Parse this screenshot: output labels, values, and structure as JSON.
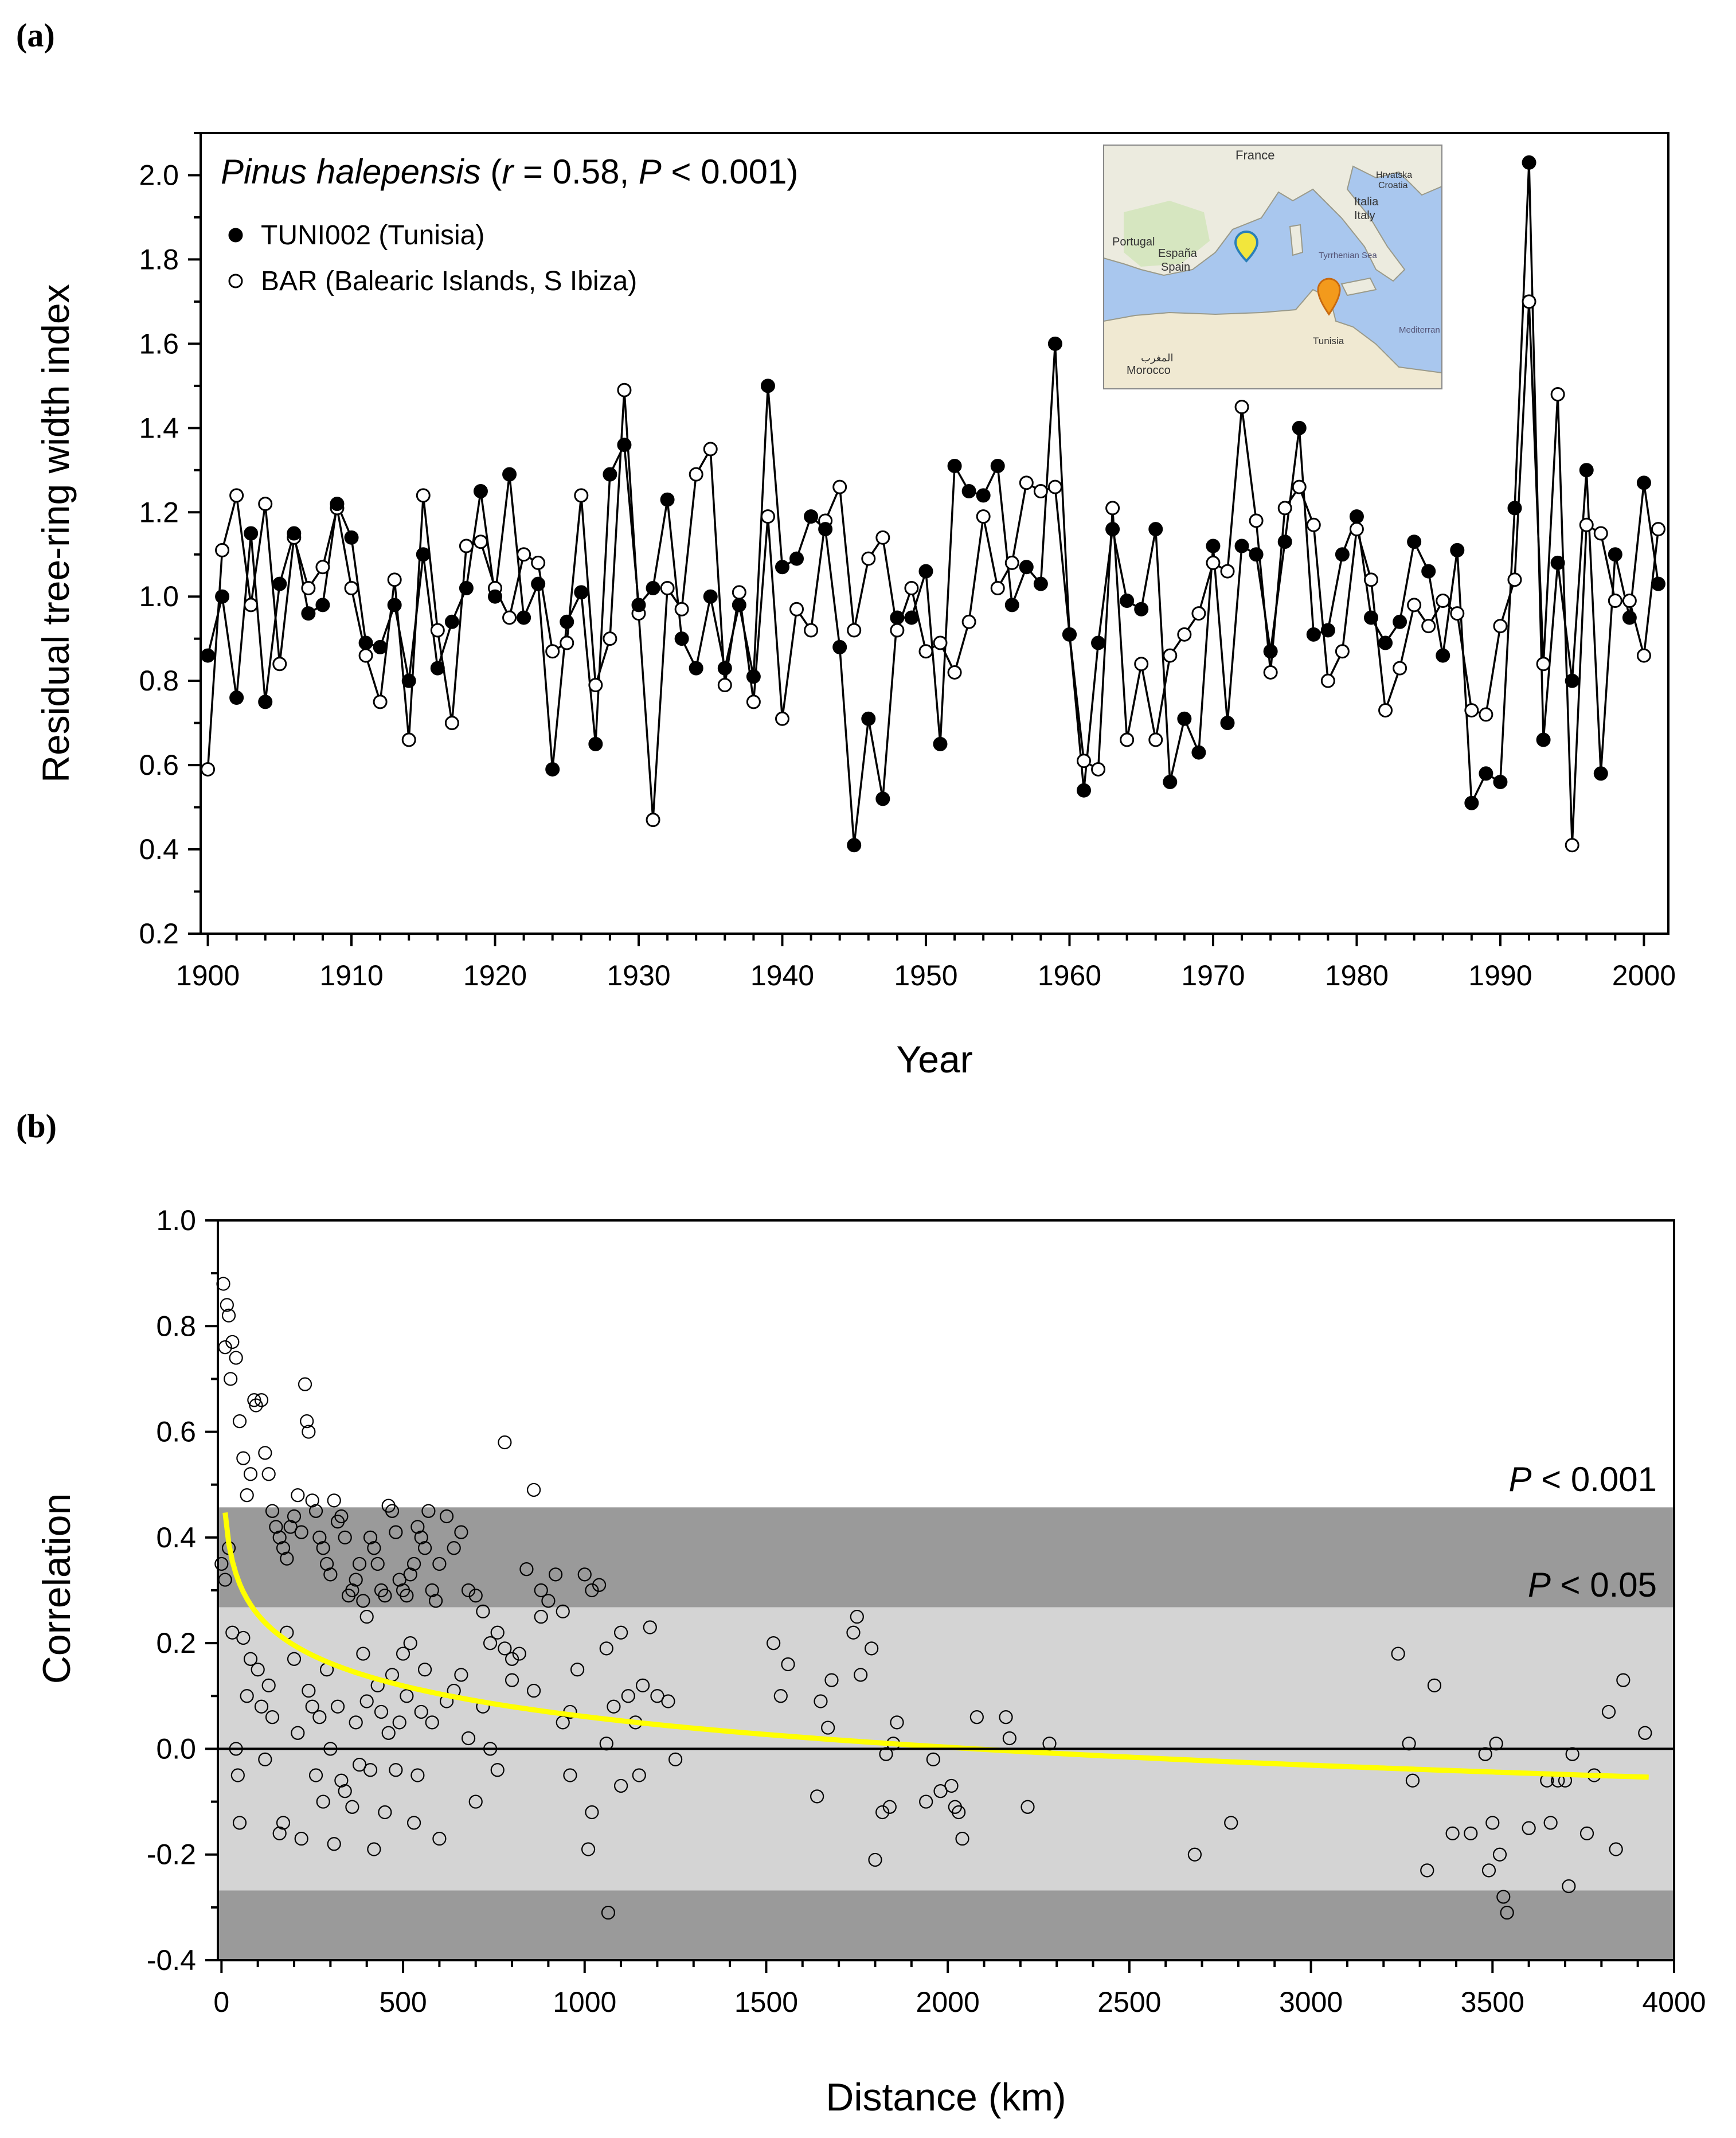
{
  "panel_a_label": "(a)",
  "panel_b_label": "(b)",
  "chart_data": [
    {
      "type": "line",
      "title_species": "Pinus halepensis",
      "title_stats_r_label": "r",
      "title_stats_r_value": " = 0.58, ",
      "title_stats_p_label": "P",
      "title_stats_p_value": " < 0.001)",
      "title_open_paren": " (",
      "xlabel": "Year",
      "ylabel": "Residual tree-ring width index",
      "xlim": [
        1899.5,
        2001.7
      ],
      "ylim": [
        0.2,
        2.1
      ],
      "xticks": [
        1900,
        1910,
        1920,
        1930,
        1940,
        1950,
        1960,
        1970,
        1980,
        1990,
        2000
      ],
      "yticks": [
        0.2,
        0.4,
        0.6,
        0.8,
        1.0,
        1.2,
        1.4,
        1.6,
        1.8,
        2.0
      ],
      "ytick_labels": [
        "0.2",
        "0.4",
        "0.6",
        "0.8",
        "1.0",
        "1.2",
        "1.4",
        "1.6",
        "1.8",
        "2.0"
      ],
      "legend_position": "top-left",
      "inset_map": {
        "labels": [
          "France",
          "Hrvatska",
          "Croatia",
          "Italia",
          "Italy",
          "Portugal",
          "España",
          "Spain",
          "Tyrrhenian Sea",
          "Mediterran",
          "المغرب",
          "Morocco",
          "Tunisia"
        ],
        "marker_colors": {
          "bar": "#f2e63c",
          "tuni": "#f39a1c"
        }
      },
      "series": [
        {
          "name": "TUNI002 (Tunisia)",
          "marker": "filled",
          "start_year": 1900,
          "values": [
            0.86,
            1.0,
            0.76,
            1.15,
            0.75,
            1.03,
            1.15,
            0.96,
            0.98,
            1.22,
            1.14,
            0.89,
            0.88,
            0.98,
            0.8,
            1.1,
            0.83,
            0.94,
            1.02,
            1.25,
            1.0,
            1.29,
            0.95,
            1.03,
            0.59,
            0.94,
            1.01,
            0.65,
            1.29,
            1.36,
            0.98,
            1.02,
            1.23,
            0.9,
            0.83,
            1.0,
            0.83,
            0.98,
            0.81,
            1.5,
            1.07,
            1.09,
            1.19,
            1.16,
            0.88,
            0.41,
            0.71,
            0.52,
            0.95,
            0.95,
            1.06,
            0.65,
            1.31,
            1.25,
            1.24,
            1.31,
            0.98,
            1.07,
            1.03,
            1.6,
            0.91,
            0.54,
            0.89,
            1.16,
            0.99,
            0.97,
            1.16,
            0.56,
            0.71,
            0.63,
            1.12,
            0.7,
            1.12,
            1.1,
            0.87,
            1.13,
            1.4,
            0.91,
            0.92,
            1.1,
            1.19,
            0.95,
            0.89,
            0.94,
            1.13,
            1.06,
            0.86,
            1.11,
            0.51,
            0.58,
            0.56,
            1.21,
            2.03,
            0.66,
            1.08,
            0.8,
            1.3,
            0.58,
            1.1,
            0.95,
            1.27,
            1.03
          ]
        },
        {
          "name": "BAR (Balearic Islands, S Ibiza)",
          "marker": "open",
          "start_year": 1900,
          "values": [
            0.59,
            1.11,
            1.24,
            0.98,
            1.22,
            0.84,
            1.14,
            1.02,
            1.07,
            1.21,
            1.02,
            0.86,
            0.75,
            1.04,
            0.66,
            1.24,
            0.92,
            0.7,
            1.12,
            1.13,
            1.02,
            0.95,
            1.1,
            1.08,
            0.87,
            0.89,
            1.24,
            0.79,
            0.9,
            1.49,
            0.96,
            0.47,
            1.02,
            0.97,
            1.29,
            1.35,
            0.79,
            1.01,
            0.75,
            1.19,
            0.71,
            0.97,
            0.92,
            1.18,
            1.26,
            0.92,
            1.09,
            1.14,
            0.92,
            1.02,
            0.87,
            0.89,
            0.82,
            0.94,
            1.19,
            1.02,
            1.08,
            1.27,
            1.25,
            1.26,
            0.91,
            0.61,
            0.59,
            1.21,
            0.66,
            0.84,
            0.66,
            0.86,
            0.91,
            0.96,
            1.08,
            1.06,
            1.45,
            1.18,
            0.82,
            1.21,
            1.26,
            1.17,
            0.8,
            0.87,
            1.16,
            1.04,
            0.73,
            0.83,
            0.98,
            0.93,
            0.99,
            0.96,
            0.73,
            0.72,
            0.93,
            1.04,
            1.7,
            0.84,
            1.48,
            0.41,
            1.17,
            1.15,
            0.99,
            0.99,
            0.86,
            1.16
          ]
        }
      ]
    },
    {
      "type": "scatter",
      "xlabel": "Distance (km)",
      "ylabel": "Correlation",
      "xlim": [
        -10,
        4000
      ],
      "ylim": [
        -0.4,
        1.0
      ],
      "xticks": [
        0,
        500,
        1000,
        1500,
        2000,
        2500,
        3000,
        3500,
        4000
      ],
      "yticks": [
        -0.4,
        -0.2,
        0.0,
        0.2,
        0.4,
        0.6,
        0.8,
        1.0
      ],
      "ytick_labels": [
        "-0.4",
        "-0.2",
        "0.0",
        "0.2",
        "0.4",
        "0.6",
        "0.8",
        "1.0"
      ],
      "significance_bands": [
        {
          "label_italic": "P",
          "label_rest": " < 0.001",
          "threshold": 0.457,
          "color": "#9a9a9a"
        },
        {
          "label_italic": "P",
          "label_rest": " < 0.05",
          "threshold": 0.268,
          "color": "#d4d4d4"
        }
      ],
      "fit_curve": {
        "color": "#ffff00",
        "model": "logarithmic",
        "a": 0.64,
        "b": -0.0838,
        "x_range": [
          10,
          3930
        ]
      },
      "points": [
        [
          5,
          0.88
        ],
        [
          10,
          0.76
        ],
        [
          15,
          0.84
        ],
        [
          20,
          0.82
        ],
        [
          25,
          0.7
        ],
        [
          30,
          0.77
        ],
        [
          40,
          0.74
        ],
        [
          50,
          0.62
        ],
        [
          60,
          0.55
        ],
        [
          70,
          0.48
        ],
        [
          80,
          0.52
        ],
        [
          90,
          0.66
        ],
        [
          95,
          0.65
        ],
        [
          110,
          0.66
        ],
        [
          120,
          0.56
        ],
        [
          130,
          0.52
        ],
        [
          140,
          0.45
        ],
        [
          150,
          0.42
        ],
        [
          160,
          0.4
        ],
        [
          170,
          0.38
        ],
        [
          180,
          0.36
        ],
        [
          190,
          0.42
        ],
        [
          200,
          0.44
        ],
        [
          210,
          0.48
        ],
        [
          220,
          0.41
        ],
        [
          230,
          0.69
        ],
        [
          235,
          0.62
        ],
        [
          240,
          0.6
        ],
        [
          250,
          0.47
        ],
        [
          260,
          0.45
        ],
        [
          270,
          0.4
        ],
        [
          280,
          0.38
        ],
        [
          290,
          0.35
        ],
        [
          300,
          0.33
        ],
        [
          310,
          0.47
        ],
        [
          320,
          0.43
        ],
        [
          330,
          0.44
        ],
        [
          340,
          0.4
        ],
        [
          350,
          0.29
        ],
        [
          360,
          0.3
        ],
        [
          370,
          0.32
        ],
        [
          380,
          0.35
        ],
        [
          390,
          0.28
        ],
        [
          400,
          0.25
        ],
        [
          410,
          0.4
        ],
        [
          420,
          0.38
        ],
        [
          430,
          0.35
        ],
        [
          440,
          0.3
        ],
        [
          450,
          0.29
        ],
        [
          460,
          0.46
        ],
        [
          470,
          0.45
        ],
        [
          480,
          0.41
        ],
        [
          490,
          0.32
        ],
        [
          500,
          0.3
        ],
        [
          510,
          0.29
        ],
        [
          520,
          0.33
        ],
        [
          530,
          0.35
        ],
        [
          540,
          0.42
        ],
        [
          550,
          0.4
        ],
        [
          560,
          0.38
        ],
        [
          570,
          0.45
        ],
        [
          580,
          0.3
        ],
        [
          590,
          0.28
        ],
        [
          600,
          0.35
        ],
        [
          620,
          0.44
        ],
        [
          640,
          0.38
        ],
        [
          660,
          0.41
        ],
        [
          680,
          0.3
        ],
        [
          700,
          0.29
        ],
        [
          720,
          0.26
        ],
        [
          740,
          0.2
        ],
        [
          760,
          0.22
        ],
        [
          780,
          0.58
        ],
        [
          800,
          0.13
        ],
        [
          820,
          0.18
        ],
        [
          840,
          0.34
        ],
        [
          860,
          0.49
        ],
        [
          880,
          0.3
        ],
        [
          900,
          0.28
        ],
        [
          920,
          0.33
        ],
        [
          940,
          0.26
        ],
        [
          960,
          0.07
        ],
        [
          980,
          0.15
        ],
        [
          1000,
          0.33
        ],
        [
          1020,
          0.3
        ],
        [
          1040,
          0.31
        ],
        [
          1060,
          0.19
        ],
        [
          1080,
          0.08
        ],
        [
          1100,
          0.22
        ],
        [
          1120,
          0.1
        ],
        [
          1140,
          0.05
        ],
        [
          1160,
          0.12
        ],
        [
          1180,
          0.23
        ],
        [
          1200,
          0.1
        ],
        [
          1230,
          0.09
        ],
        [
          1250,
          -0.02
        ],
        [
          1010,
          -0.19
        ],
        [
          1020,
          -0.12
        ],
        [
          1065,
          -0.31
        ],
        [
          1060,
          0.01
        ],
        [
          1100,
          -0.07
        ],
        [
          1150,
          -0.05
        ],
        [
          0,
          0.35
        ],
        [
          10,
          0.32
        ],
        [
          20,
          0.38
        ],
        [
          30,
          0.22
        ],
        [
          40,
          0.0
        ],
        [
          45,
          -0.05
        ],
        [
          50,
          -0.14
        ],
        [
          60,
          0.21
        ],
        [
          70,
          0.1
        ],
        [
          80,
          0.17
        ],
        [
          100,
          0.15
        ],
        [
          110,
          0.08
        ],
        [
          120,
          -0.02
        ],
        [
          130,
          0.12
        ],
        [
          140,
          0.06
        ],
        [
          160,
          -0.16
        ],
        [
          170,
          -0.14
        ],
        [
          180,
          0.22
        ],
        [
          200,
          0.17
        ],
        [
          210,
          0.03
        ],
        [
          220,
          -0.17
        ],
        [
          240,
          0.11
        ],
        [
          250,
          0.08
        ],
        [
          260,
          -0.05
        ],
        [
          270,
          0.06
        ],
        [
          280,
          -0.1
        ],
        [
          290,
          0.15
        ],
        [
          300,
          0.0
        ],
        [
          310,
          -0.18
        ],
        [
          320,
          0.08
        ],
        [
          330,
          -0.06
        ],
        [
          340,
          -0.08
        ],
        [
          360,
          -0.11
        ],
        [
          370,
          0.05
        ],
        [
          380,
          -0.03
        ],
        [
          390,
          0.18
        ],
        [
          400,
          0.09
        ],
        [
          410,
          -0.04
        ],
        [
          420,
          -0.19
        ],
        [
          430,
          0.12
        ],
        [
          440,
          0.07
        ],
        [
          450,
          -0.12
        ],
        [
          460,
          0.03
        ],
        [
          470,
          0.14
        ],
        [
          480,
          -0.04
        ],
        [
          490,
          0.05
        ],
        [
          500,
          0.18
        ],
        [
          510,
          0.1
        ],
        [
          520,
          0.2
        ],
        [
          530,
          -0.14
        ],
        [
          540,
          -0.05
        ],
        [
          550,
          0.07
        ],
        [
          560,
          0.15
        ],
        [
          580,
          0.05
        ],
        [
          600,
          -0.17
        ],
        [
          620,
          0.09
        ],
        [
          640,
          0.11
        ],
        [
          660,
          0.14
        ],
        [
          680,
          0.02
        ],
        [
          700,
          -0.1
        ],
        [
          720,
          0.08
        ],
        [
          740,
          0.0
        ],
        [
          760,
          -0.04
        ],
        [
          780,
          0.19
        ],
        [
          800,
          0.17
        ],
        [
          860,
          0.11
        ],
        [
          880,
          0.25
        ],
        [
          940,
          0.05
        ],
        [
          960,
          -0.05
        ],
        [
          1520,
          0.2
        ],
        [
          1540,
          0.1
        ],
        [
          1560,
          0.16
        ],
        [
          1640,
          -0.09
        ],
        [
          1650,
          0.09
        ],
        [
          1670,
          0.04
        ],
        [
          1680,
          0.13
        ],
        [
          1740,
          0.22
        ],
        [
          1750,
          0.25
        ],
        [
          1760,
          0.14
        ],
        [
          1790,
          0.19
        ],
        [
          1800,
          -0.21
        ],
        [
          1820,
          -0.12
        ],
        [
          1830,
          -0.01
        ],
        [
          1840,
          -0.11
        ],
        [
          1850,
          0.01
        ],
        [
          1860,
          0.05
        ],
        [
          1940,
          -0.1
        ],
        [
          1960,
          -0.02
        ],
        [
          1980,
          -0.08
        ],
        [
          2010,
          -0.07
        ],
        [
          2020,
          -0.11
        ],
        [
          2030,
          -0.12
        ],
        [
          2040,
          -0.17
        ],
        [
          2080,
          0.06
        ],
        [
          2160,
          0.06
        ],
        [
          2170,
          0.02
        ],
        [
          2220,
          -0.11
        ],
        [
          2280,
          0.01
        ],
        [
          2680,
          -0.2
        ],
        [
          2780,
          -0.14
        ],
        [
          3240,
          0.18
        ],
        [
          3270,
          0.01
        ],
        [
          3280,
          -0.06
        ],
        [
          3320,
          -0.23
        ],
        [
          3340,
          0.12
        ],
        [
          3390,
          -0.16
        ],
        [
          3440,
          -0.16
        ],
        [
          3480,
          -0.01
        ],
        [
          3490,
          -0.23
        ],
        [
          3500,
          -0.14
        ],
        [
          3510,
          0.01
        ],
        [
          3520,
          -0.2
        ],
        [
          3530,
          -0.28
        ],
        [
          3540,
          -0.31
        ],
        [
          3600,
          -0.15
        ],
        [
          3650,
          -0.06
        ],
        [
          3660,
          -0.14
        ],
        [
          3680,
          -0.06
        ],
        [
          3700,
          -0.06
        ],
        [
          3710,
          -0.26
        ],
        [
          3720,
          -0.01
        ],
        [
          3760,
          -0.16
        ],
        [
          3780,
          -0.05
        ],
        [
          3820,
          0.07
        ],
        [
          3840,
          -0.19
        ],
        [
          3860,
          0.13
        ],
        [
          3920,
          0.03
        ]
      ]
    }
  ]
}
